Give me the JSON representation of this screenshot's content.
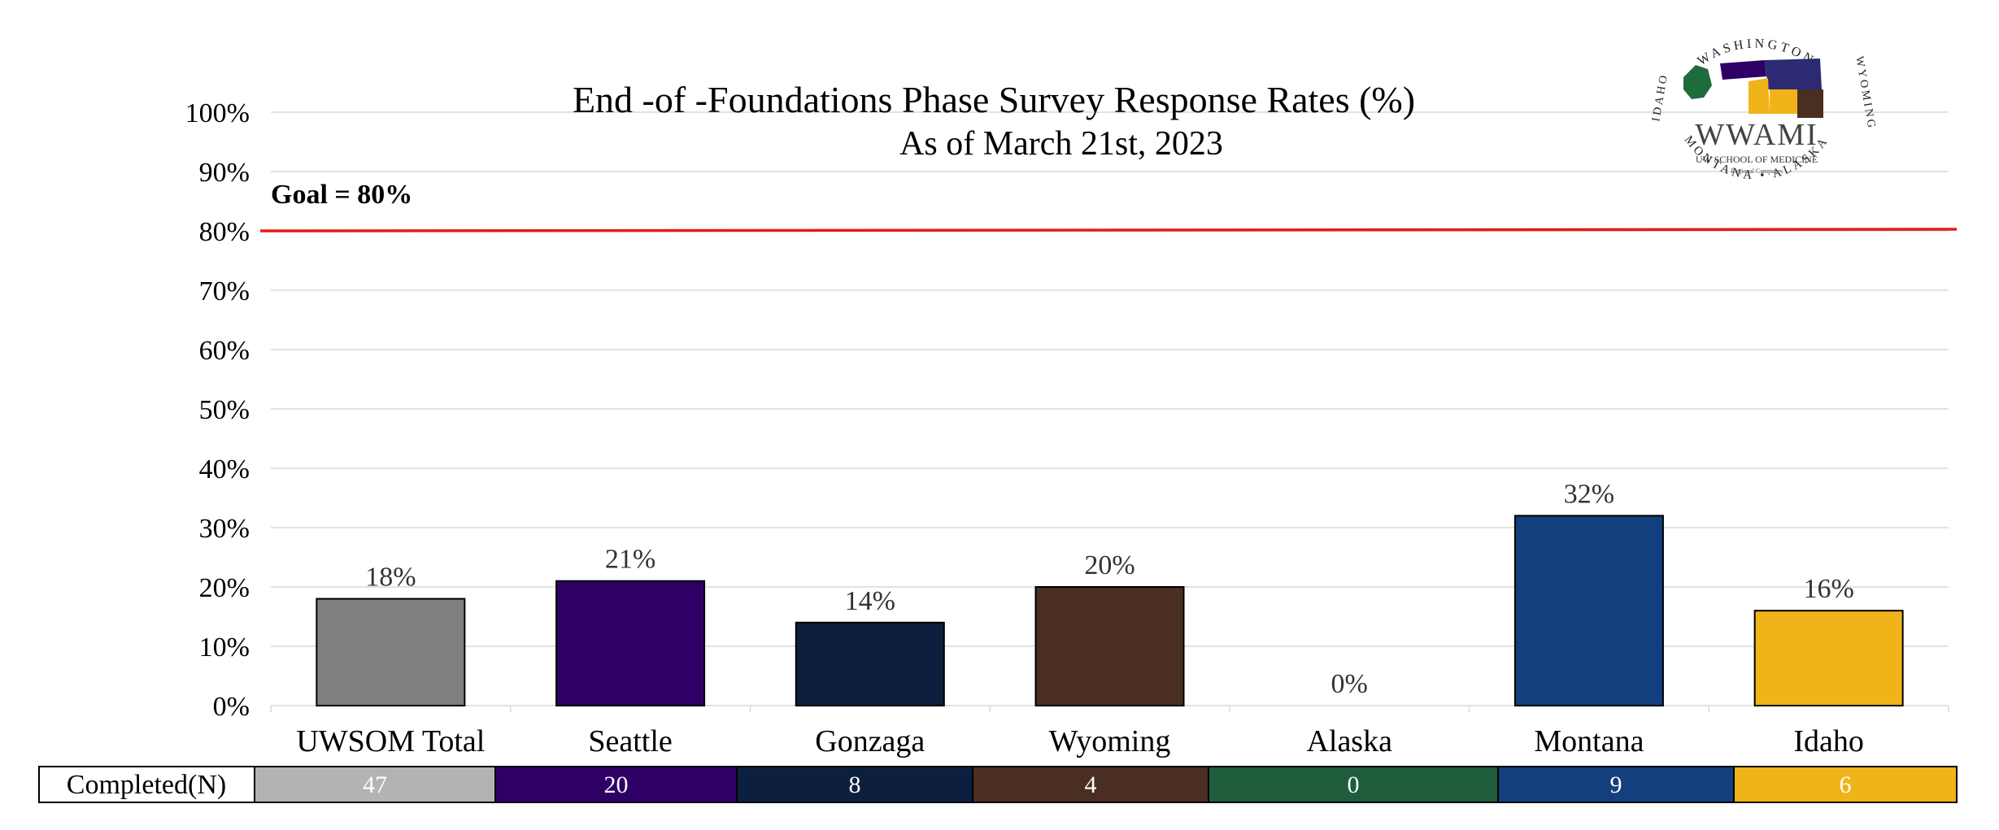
{
  "chart_data": {
    "type": "bar",
    "title": "End -of -Foundations Phase Survey Response Rates (%)",
    "subtitle": "As of March 21st, 2023",
    "categories": [
      "UWSOM Total",
      "Seattle",
      "Gonzaga",
      "Wyoming",
      "Alaska",
      "Montana",
      "Idaho"
    ],
    "values": [
      18,
      21,
      14,
      20,
      0,
      32,
      16
    ],
    "data_labels": [
      "18%",
      "21%",
      "14%",
      "20%",
      "0%",
      "32%",
      "16%"
    ],
    "bar_colors": [
      "#7f7f7f",
      "#2e0066",
      "#0d1f3f",
      "#4a2e22",
      "#1e5c3b",
      "#133f7f",
      "#f0b31a"
    ],
    "ylim": [
      0,
      100
    ],
    "yticks": [
      0,
      10,
      20,
      30,
      40,
      50,
      60,
      70,
      80,
      90,
      100
    ],
    "ytick_labels": [
      "0%",
      "10%",
      "20%",
      "30%",
      "40%",
      "50%",
      "60%",
      "70%",
      "80%",
      "90%",
      "100%"
    ],
    "xlabel": "",
    "ylabel": "",
    "grid": true,
    "legend": "none",
    "goal": {
      "value": 80,
      "label": "Goal = 80%",
      "color": "#e41b1b"
    }
  },
  "completed_table": {
    "header": "Completed(N)",
    "values": [
      "47",
      "20",
      "8",
      "4",
      "0",
      "9",
      "6"
    ],
    "fill_colors": [
      "#b3b3b3",
      "#2e0066",
      "#0d1f3f",
      "#4a2e22",
      "#1e5c3b",
      "#133f7f",
      "#f0b31a"
    ]
  },
  "logo": {
    "arc_top": "WASHINGTON",
    "arc_left": "IDAHO",
    "arc_right": "WYOMING",
    "arc_bottom": "MONTANA • ALASKA",
    "name": "WWAMI",
    "subtitle": "UW SCHOOL OF MEDICINE",
    "tagline": "Regional Campuses"
  }
}
